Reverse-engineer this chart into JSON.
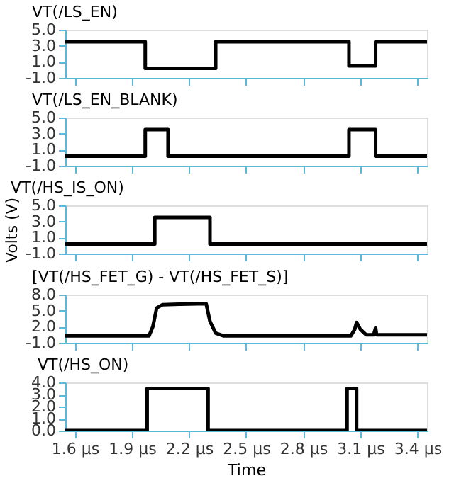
{
  "chart_data": [
    {
      "type": "line",
      "title": "VT(/LS_EN)",
      "tick_labels": "y",
      "xlim": [
        1.55,
        3.45
      ],
      "ylim": [
        -1,
        5
      ],
      "yticks": [
        {
          "value": 5,
          "label": "5.0"
        },
        {
          "value": 3,
          "label": "3.0"
        },
        {
          "value": 1,
          "label": "1.0"
        },
        {
          "value": -1,
          "label": "-1.0"
        }
      ],
      "xticks": [
        1.6,
        1.9,
        2.2,
        2.5,
        2.8,
        3.1,
        3.4
      ],
      "series": [
        {
          "color": "#000000",
          "x": [
            1.55,
            1.97,
            1.97,
            2.34,
            2.34,
            3.04,
            3.04,
            3.18,
            3.18,
            3.45
          ],
          "values": [
            3.5,
            3.5,
            0.2,
            0.2,
            3.5,
            3.5,
            0.5,
            0.5,
            3.5,
            3.5
          ]
        }
      ]
    },
    {
      "type": "line",
      "title": "VT(/LS_EN_BLANK)",
      "tick_labels": "y",
      "xlim": [
        1.55,
        3.45
      ],
      "ylim": [
        -1,
        5
      ],
      "yticks": [
        {
          "value": 5,
          "label": "5.0"
        },
        {
          "value": 3,
          "label": "3.0"
        },
        {
          "value": 1,
          "label": "1.0"
        },
        {
          "value": -1,
          "label": "-1.0"
        }
      ],
      "xticks": [
        1.6,
        1.9,
        2.2,
        2.5,
        2.8,
        3.1,
        3.4
      ],
      "series": [
        {
          "color": "#000000",
          "x": [
            1.55,
            1.97,
            1.97,
            2.09,
            2.09,
            3.04,
            3.04,
            3.18,
            3.18,
            3.45
          ],
          "values": [
            0.2,
            0.2,
            3.5,
            3.5,
            0.2,
            0.2,
            3.5,
            3.5,
            0.2,
            0.2
          ]
        }
      ]
    },
    {
      "type": "line",
      "title": "VT(/HS_IS_ON)",
      "ylabel": "Volts (V)",
      "tick_labels": "y",
      "xlim": [
        1.55,
        3.45
      ],
      "ylim": [
        -1,
        5
      ],
      "yticks": [
        {
          "value": 5,
          "label": "5.0"
        },
        {
          "value": 3,
          "label": "3.0"
        },
        {
          "value": 1,
          "label": "1.0"
        },
        {
          "value": -1,
          "label": "-1.0"
        }
      ],
      "xticks": [
        1.6,
        1.9,
        2.2,
        2.5,
        2.8,
        3.1,
        3.4
      ],
      "series": [
        {
          "color": "#000000",
          "x": [
            1.55,
            2.02,
            2.02,
            2.31,
            2.31,
            3.45
          ],
          "values": [
            0.2,
            0.2,
            3.5,
            3.5,
            0.2,
            0.2
          ]
        }
      ]
    },
    {
      "type": "line",
      "title": "[VT(/HS_FET_G) - VT(/HS_FET_S)]",
      "tick_labels": "y",
      "xlim": [
        1.55,
        3.45
      ],
      "ylim": [
        -1,
        8
      ],
      "yticks": [
        {
          "value": 8,
          "label": "8.0"
        },
        {
          "value": 5,
          "label": "5.0"
        },
        {
          "value": 2,
          "label": "2.0"
        },
        {
          "value": -1,
          "label": "-1.0"
        }
      ],
      "xticks": [
        1.6,
        1.9,
        2.2,
        2.5,
        2.8,
        3.1,
        3.4
      ],
      "series": [
        {
          "color": "#000000",
          "x": [
            1.55,
            1.99,
            2.01,
            2.03,
            2.06,
            2.15,
            2.29,
            2.31,
            2.34,
            2.38,
            3.05,
            3.07,
            3.08,
            3.1,
            3.13,
            3.17,
            3.18,
            3.185,
            3.45
          ],
          "values": [
            0.3,
            0.3,
            2,
            5.5,
            6.1,
            6.2,
            6.3,
            3,
            0.8,
            0.3,
            0.3,
            1.5,
            2.8,
            1.5,
            0.5,
            0.5,
            1.8,
            0.5,
            0.5
          ]
        }
      ]
    },
    {
      "type": "line",
      "title": "VT(/HS_ON)",
      "xlabel": "Time",
      "xlim": [
        1.55,
        3.45
      ],
      "ylim": [
        0,
        4
      ],
      "yticks": [
        {
          "value": 4,
          "label": "4.0"
        },
        {
          "value": 3,
          "label": "3.0"
        },
        {
          "value": 2,
          "label": "2.0"
        },
        {
          "value": 1,
          "label": "1.0"
        },
        {
          "value": 0,
          "label": "0.0"
        }
      ],
      "xticks": [
        {
          "value": 1.6,
          "label": "1.6 μs"
        },
        {
          "value": 1.9,
          "label": "1.9 μs"
        },
        {
          "value": 2.2,
          "label": "2.2 μs"
        },
        {
          "value": 2.5,
          "label": "2.5 μs"
        },
        {
          "value": 2.8,
          "label": "2.8 μs"
        },
        {
          "value": 3.1,
          "label": "3.1 μs"
        },
        {
          "value": 3.4,
          "label": "3.4 μs"
        }
      ],
      "series": [
        {
          "color": "#000000",
          "x": [
            1.55,
            1.98,
            1.98,
            2.3,
            2.3,
            3.03,
            3.03,
            3.08,
            3.08,
            3.45
          ],
          "values": [
            0,
            0,
            3.5,
            3.5,
            0,
            0,
            3.5,
            3.5,
            0,
            0
          ]
        }
      ]
    }
  ]
}
